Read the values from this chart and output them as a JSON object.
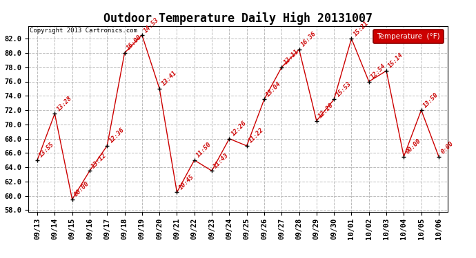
{
  "title": "Outdoor Temperature Daily High 20131007",
  "copyright": "Copyright 2013 Cartronics.com",
  "legend_label": "Temperature  (°F)",
  "ylim": [
    57.8,
    83.8
  ],
  "yticks": [
    58.0,
    60.0,
    62.0,
    64.0,
    66.0,
    68.0,
    70.0,
    72.0,
    74.0,
    76.0,
    78.0,
    80.0,
    82.0
  ],
  "background_color": "#ffffff",
  "grid_color": "#bbbbbb",
  "line_color": "#cc0000",
  "point_color": "#000000",
  "dates": [
    "09/13",
    "09/14",
    "09/15",
    "09/16",
    "09/17",
    "09/18",
    "09/19",
    "09/20",
    "09/21",
    "09/22",
    "09/23",
    "09/24",
    "09/25",
    "09/26",
    "09/27",
    "09/28",
    "09/29",
    "09/30",
    "10/01",
    "10/02",
    "10/03",
    "10/04",
    "10/05",
    "10/06"
  ],
  "values": [
    65.0,
    71.5,
    59.5,
    63.5,
    67.0,
    80.0,
    82.5,
    75.0,
    60.5,
    65.0,
    63.5,
    68.0,
    67.0,
    73.5,
    78.0,
    80.5,
    70.5,
    73.5,
    82.0,
    76.0,
    77.5,
    65.5,
    72.0,
    65.5
  ],
  "labels": [
    "13:55",
    "13:28",
    "00:00",
    "13:12",
    "12:36",
    "16:00",
    "14:53",
    "13:41",
    "10:45",
    "11:50",
    "11:43",
    "12:26",
    "11:22",
    "13:04",
    "12:11",
    "16:36",
    "12:20",
    "15:53",
    "15:21",
    "12:54",
    "15:14",
    "00:00",
    "13:50",
    "0:00"
  ],
  "title_fontsize": 12,
  "tick_fontsize": 7.5,
  "label_fontsize": 6.5,
  "copyright_fontsize": 6.5
}
